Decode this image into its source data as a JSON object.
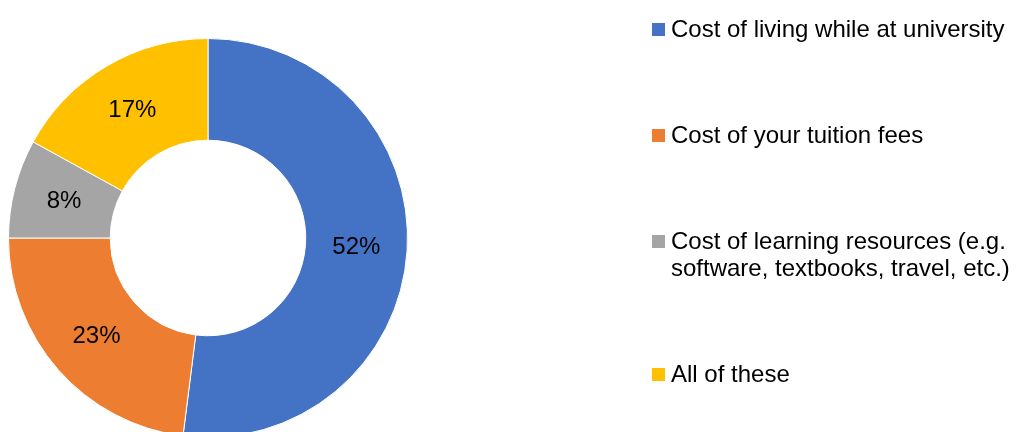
{
  "chart_data": {
    "type": "donut",
    "categories": [
      "Cost of living while at university",
      "Cost of your tuition fees",
      "Cost of learning resources (e.g. software, textbooks, travel, etc.)",
      "All of these"
    ],
    "values": [
      52,
      23,
      8,
      17
    ],
    "colors": [
      "#4472c4",
      "#ed7d31",
      "#a5a5a5",
      "#ffc000"
    ],
    "value_labels": [
      "52%",
      "23%",
      "8%",
      "17%"
    ],
    "legend": "right"
  }
}
